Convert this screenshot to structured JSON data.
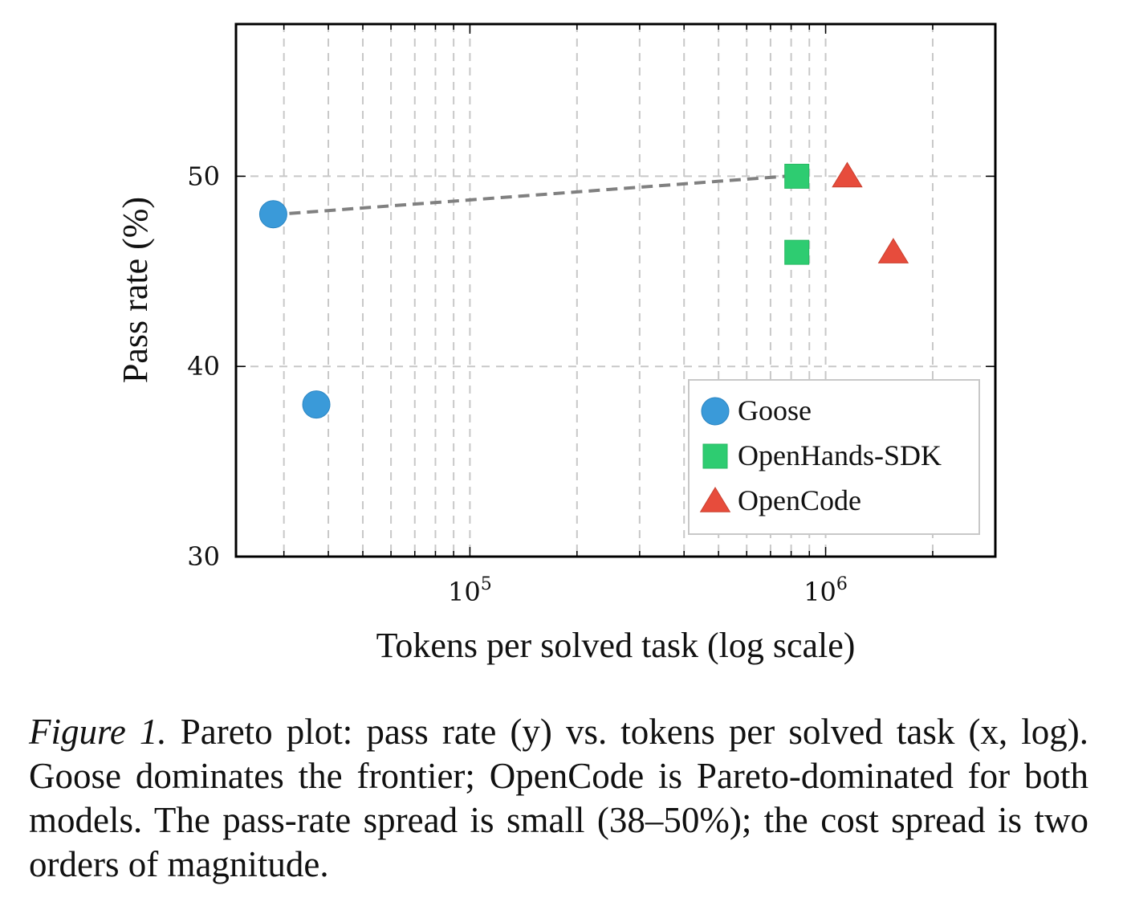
{
  "chart_data": {
    "type": "scatter",
    "title": "",
    "xlabel": "Tokens per solved task (log scale)",
    "ylabel": "Pass rate (%)",
    "x_scale": "log",
    "xlim": [
      22000,
      3000000
    ],
    "ylim": [
      30,
      58
    ],
    "y_ticks": [
      30,
      40,
      50
    ],
    "x_ticks": [
      {
        "value": 100000,
        "base": "10",
        "exp": "5"
      },
      {
        "value": 1000000,
        "base": "10",
        "exp": "6"
      }
    ],
    "grid": true,
    "legend_position": "bottom-right",
    "series": [
      {
        "name": "Goose",
        "marker": "circle",
        "color": "#3a9ad9",
        "points": [
          {
            "x": 28000,
            "y": 48
          },
          {
            "x": 37000,
            "y": 38
          }
        ]
      },
      {
        "name": "OpenHands-SDK",
        "marker": "square",
        "color": "#2ecc71",
        "points": [
          {
            "x": 830000,
            "y": 50
          },
          {
            "x": 830000,
            "y": 46
          }
        ]
      },
      {
        "name": "OpenCode",
        "marker": "triangle",
        "color": "#e74c3c",
        "points": [
          {
            "x": 1150000,
            "y": 50
          },
          {
            "x": 1550000,
            "y": 46
          }
        ]
      }
    ],
    "frontier": {
      "color": "#808080",
      "points": [
        {
          "x": 28000,
          "y": 48
        },
        {
          "x": 830000,
          "y": 50
        }
      ]
    }
  },
  "caption": {
    "label": "Figure 1.",
    "text": "Pareto plot: pass rate (y) vs. tokens per solved task (x, log). Goose dominates the frontier; OpenCode is Pareto-dominated for both models. The pass-rate spread is small (38–50%); the cost spread is two orders of magnitude."
  }
}
